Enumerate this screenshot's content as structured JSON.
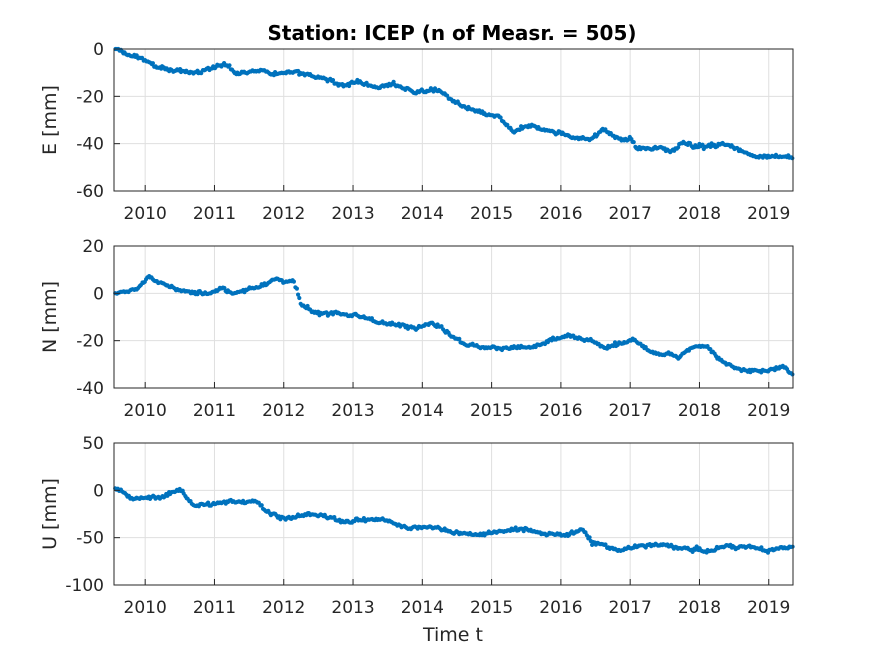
{
  "title": "Station: ICEP (n of Measr. = 505)",
  "xlabel": "Time t",
  "marker_color": "#0072BD",
  "grid": true,
  "chart_data": [
    {
      "type": "scatter",
      "ylabel": "E [mm]",
      "xlim": [
        2009.55,
        2019.35
      ],
      "ylim": [
        -60,
        0
      ],
      "x_ticks": [
        2010,
        2011,
        2012,
        2013,
        2014,
        2015,
        2016,
        2017,
        2018,
        2019
      ],
      "y_ticks": [
        0,
        -20,
        -40,
        -60
      ],
      "trend_points": [
        [
          2009.6,
          0
        ],
        [
          2009.8,
          -3
        ],
        [
          2010.0,
          -5
        ],
        [
          2010.2,
          -8
        ],
        [
          2010.5,
          -9
        ],
        [
          2010.8,
          -10
        ],
        [
          2011.0,
          -8
        ],
        [
          2011.15,
          -6
        ],
        [
          2011.35,
          -10
        ],
        [
          2011.7,
          -9
        ],
        [
          2011.9,
          -11
        ],
        [
          2012.2,
          -9
        ],
        [
          2012.5,
          -12
        ],
        [
          2012.8,
          -15
        ],
        [
          2013.1,
          -14
        ],
        [
          2013.3,
          -16
        ],
        [
          2013.6,
          -15
        ],
        [
          2013.9,
          -18
        ],
        [
          2014.2,
          -17
        ],
        [
          2014.4,
          -21
        ],
        [
          2014.6,
          -25
        ],
        [
          2014.9,
          -28
        ],
        [
          2015.1,
          -29
        ],
        [
          2015.3,
          -35
        ],
        [
          2015.6,
          -33
        ],
        [
          2015.9,
          -35
        ],
        [
          2016.2,
          -37
        ],
        [
          2016.4,
          -38
        ],
        [
          2016.6,
          -34
        ],
        [
          2016.9,
          -39
        ],
        [
          2017.0,
          -38
        ],
        [
          2017.1,
          -42
        ],
        [
          2017.4,
          -42
        ],
        [
          2017.6,
          -43
        ],
        [
          2017.75,
          -39
        ],
        [
          2018.1,
          -41
        ],
        [
          2018.4,
          -40
        ],
        [
          2018.6,
          -43
        ],
        [
          2018.8,
          -45
        ],
        [
          2019.1,
          -45
        ],
        [
          2019.35,
          -46
        ]
      ]
    },
    {
      "type": "scatter",
      "ylabel": "N [mm]",
      "xlim": [
        2009.55,
        2019.35
      ],
      "ylim": [
        -40,
        20
      ],
      "x_ticks": [
        2010,
        2011,
        2012,
        2013,
        2014,
        2015,
        2016,
        2017,
        2018,
        2019
      ],
      "y_ticks": [
        20,
        0,
        -20,
        -40
      ],
      "trend_points": [
        [
          2009.6,
          0
        ],
        [
          2009.9,
          2
        ],
        [
          2010.05,
          7
        ],
        [
          2010.3,
          3
        ],
        [
          2010.6,
          1
        ],
        [
          2010.9,
          0
        ],
        [
          2011.1,
          2
        ],
        [
          2011.3,
          0
        ],
        [
          2011.6,
          3
        ],
        [
          2011.9,
          6
        ],
        [
          2012.15,
          5
        ],
        [
          2012.25,
          -5
        ],
        [
          2012.45,
          -8
        ],
        [
          2012.8,
          -8
        ],
        [
          2013.2,
          -11
        ],
        [
          2013.5,
          -13
        ],
        [
          2013.8,
          -14
        ],
        [
          2014.1,
          -12
        ],
        [
          2014.3,
          -15
        ],
        [
          2014.6,
          -21
        ],
        [
          2014.9,
          -23
        ],
        [
          2015.2,
          -23
        ],
        [
          2015.6,
          -23
        ],
        [
          2015.9,
          -20
        ],
        [
          2016.1,
          -18
        ],
        [
          2016.4,
          -20
        ],
        [
          2016.6,
          -23
        ],
        [
          2016.9,
          -21
        ],
        [
          2017.05,
          -20
        ],
        [
          2017.3,
          -25
        ],
        [
          2017.7,
          -27
        ],
        [
          2017.9,
          -22
        ],
        [
          2018.1,
          -22
        ],
        [
          2018.3,
          -28
        ],
        [
          2018.6,
          -33
        ],
        [
          2019.0,
          -33
        ],
        [
          2019.2,
          -31
        ],
        [
          2019.35,
          -35
        ]
      ]
    },
    {
      "type": "scatter",
      "ylabel": "U [mm]",
      "xlim": [
        2009.55,
        2019.35
      ],
      "ylim": [
        -100,
        50
      ],
      "x_ticks": [
        2010,
        2011,
        2012,
        2013,
        2014,
        2015,
        2016,
        2017,
        2018,
        2019
      ],
      "y_ticks": [
        50,
        0,
        -50,
        -100
      ],
      "trend_points": [
        [
          2009.6,
          2
        ],
        [
          2009.9,
          -8
        ],
        [
          2010.2,
          -8
        ],
        [
          2010.5,
          0
        ],
        [
          2010.7,
          -15
        ],
        [
          2011.0,
          -15
        ],
        [
          2011.3,
          -12
        ],
        [
          2011.6,
          -10
        ],
        [
          2011.8,
          -25
        ],
        [
          2012.1,
          -28
        ],
        [
          2012.4,
          -25
        ],
        [
          2012.6,
          -28
        ],
        [
          2012.8,
          -33
        ],
        [
          2013.1,
          -32
        ],
        [
          2013.4,
          -30
        ],
        [
          2013.6,
          -35
        ],
        [
          2013.8,
          -40
        ],
        [
          2014.1,
          -37
        ],
        [
          2014.4,
          -42
        ],
        [
          2014.6,
          -45
        ],
        [
          2014.9,
          -47
        ],
        [
          2015.2,
          -42
        ],
        [
          2015.5,
          -40
        ],
        [
          2015.8,
          -47
        ],
        [
          2016.1,
          -47
        ],
        [
          2016.3,
          -40
        ],
        [
          2016.45,
          -55
        ],
        [
          2016.8,
          -62
        ],
        [
          2017.0,
          -62
        ],
        [
          2017.3,
          -57
        ],
        [
          2017.5,
          -58
        ],
        [
          2017.8,
          -63
        ],
        [
          2018.1,
          -65
        ],
        [
          2018.4,
          -60
        ],
        [
          2018.7,
          -59
        ],
        [
          2019.0,
          -65
        ],
        [
          2019.35,
          -60
        ]
      ]
    }
  ]
}
